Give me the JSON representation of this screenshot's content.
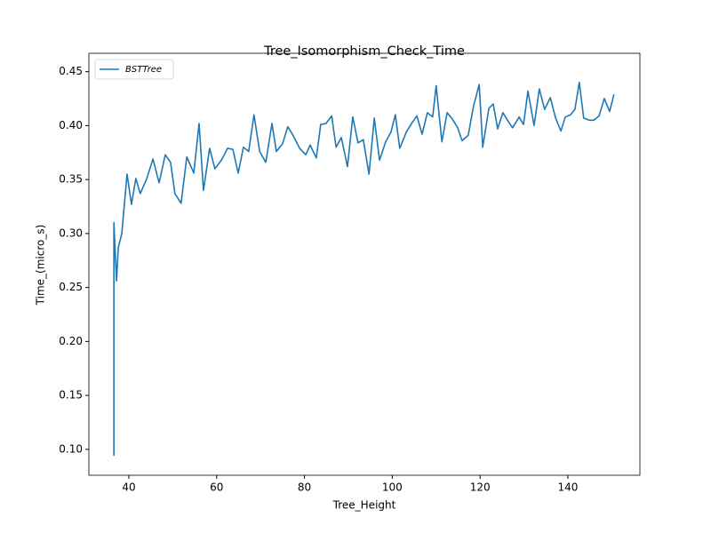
{
  "chart_data": {
    "type": "line",
    "title": "Tree_Isomorphism_Check_Time",
    "x_label": "Tree_Height",
    "y_label": "Time_(micro_s)",
    "xlim": [
      30.9,
      156.4
    ],
    "ylim": [
      0.076,
      0.467
    ],
    "xticks": [
      40,
      60,
      80,
      100,
      120,
      140
    ],
    "yticks": [
      {
        "value": 0.1,
        "label": "0.10"
      },
      0.15,
      {
        "value": 0.2,
        "label": "0.20"
      },
      0.25,
      {
        "value": 0.3,
        "label": "0.30"
      },
      0.35,
      {
        "value": 0.4,
        "label": "0.40"
      },
      0.45
    ],
    "legend": "upper left",
    "series": [
      {
        "name": "BSTTree",
        "color": "#1f77b4",
        "x": [
          36.6,
          36.6,
          37.2,
          37.6,
          38.4,
          39.6,
          40.6,
          41.6,
          42.6,
          44.0,
          45.5,
          46.9,
          48.3,
          49.5,
          50.5,
          51.9,
          53.2,
          54.8,
          56.0,
          57.0,
          58.4,
          59.6,
          61.1,
          62.5,
          63.7,
          64.9,
          66.1,
          67.3,
          68.5,
          69.8,
          71.2,
          72.6,
          73.6,
          75.0,
          76.2,
          77.4,
          78.9,
          80.3,
          81.3,
          82.7,
          83.7,
          84.9,
          86.2,
          87.2,
          88.4,
          89.8,
          91.0,
          92.2,
          93.4,
          94.7,
          95.9,
          97.1,
          98.5,
          99.7,
          100.7,
          101.7,
          103.2,
          104.4,
          105.6,
          106.8,
          108.0,
          109.2,
          110.0,
          111.3,
          112.5,
          113.7,
          114.9,
          115.9,
          117.3,
          118.5,
          119.8,
          120.6,
          122.0,
          123.0,
          124.0,
          125.2,
          126.4,
          127.4,
          128.9,
          129.9,
          130.9,
          132.3,
          133.5,
          134.7,
          136.0,
          137.2,
          138.4,
          139.4,
          140.6,
          141.6,
          142.6,
          143.6,
          144.9,
          145.9,
          147.1,
          148.3,
          149.5,
          150.5
        ],
        "values": [
          0.094,
          0.31,
          0.256,
          0.287,
          0.3,
          0.355,
          0.327,
          0.351,
          0.337,
          0.35,
          0.369,
          0.347,
          0.373,
          0.366,
          0.337,
          0.328,
          0.371,
          0.356,
          0.402,
          0.34,
          0.379,
          0.36,
          0.368,
          0.379,
          0.378,
          0.356,
          0.38,
          0.376,
          0.41,
          0.376,
          0.366,
          0.402,
          0.376,
          0.383,
          0.399,
          0.391,
          0.379,
          0.373,
          0.382,
          0.37,
          0.401,
          0.402,
          0.409,
          0.38,
          0.389,
          0.362,
          0.408,
          0.384,
          0.387,
          0.355,
          0.407,
          0.368,
          0.385,
          0.394,
          0.41,
          0.379,
          0.394,
          0.402,
          0.409,
          0.392,
          0.412,
          0.408,
          0.437,
          0.385,
          0.412,
          0.406,
          0.398,
          0.386,
          0.391,
          0.418,
          0.438,
          0.38,
          0.416,
          0.42,
          0.397,
          0.412,
          0.404,
          0.398,
          0.408,
          0.401,
          0.432,
          0.4,
          0.434,
          0.415,
          0.426,
          0.407,
          0.395,
          0.408,
          0.41,
          0.415,
          0.44,
          0.407,
          0.405,
          0.405,
          0.409,
          0.425,
          0.413,
          0.429
        ]
      }
    ]
  }
}
